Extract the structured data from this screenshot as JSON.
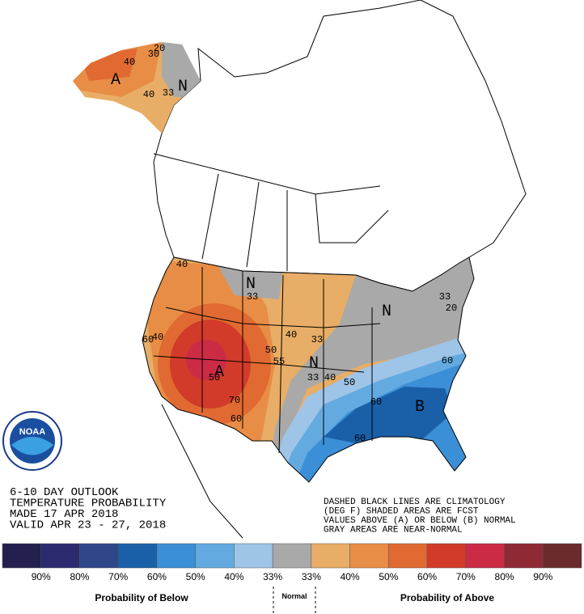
{
  "header": {
    "lines": [
      "6-10 DAY OUTLOOK",
      "TEMPERATURE PROBABILITY",
      "MADE  17 APR 2018",
      "VALID  APR 23 - 27, 2018"
    ]
  },
  "note": {
    "lines": [
      "DASHED BLACK LINES ARE CLIMATOLOGY",
      "(DEG F) SHADED AREAS ARE FCST",
      "VALUES ABOVE (A) OR BELOW (B) NORMAL",
      "GRAY AREAS ARE NEAR-NORMAL"
    ]
  },
  "logo": {
    "text": "NOAA"
  },
  "map": {
    "labels": [
      "A",
      "N",
      "40",
      "33",
      "30",
      "20",
      "40",
      "N",
      "33",
      "40",
      "40",
      "50",
      "60",
      "A",
      "70",
      "60",
      "50",
      "N",
      "55",
      "33",
      "40",
      "N",
      "33",
      "20",
      "50",
      "60",
      "60",
      "B",
      "60",
      "33",
      "40"
    ]
  },
  "legend": {
    "colors": [
      "#231f4f",
      "#2c2a6f",
      "#2f4689",
      "#1a60a8",
      "#3b8fd6",
      "#63aae1",
      "#9ec4e7",
      "#a9a9a9",
      "#e8ad66",
      "#e88d45",
      "#e06a32",
      "#d23b29",
      "#cc2b46",
      "#8f2a35",
      "#6b2a2b"
    ],
    "ticks": [
      "90%",
      "80%",
      "70%",
      "60%",
      "50%",
      "40%",
      "33%",
      "33%",
      "40%",
      "50%",
      "60%",
      "70%",
      "80%",
      "90%"
    ],
    "below_label": "Probability of Below",
    "normal_label": "Normal",
    "above_label": "Probability of Above"
  }
}
